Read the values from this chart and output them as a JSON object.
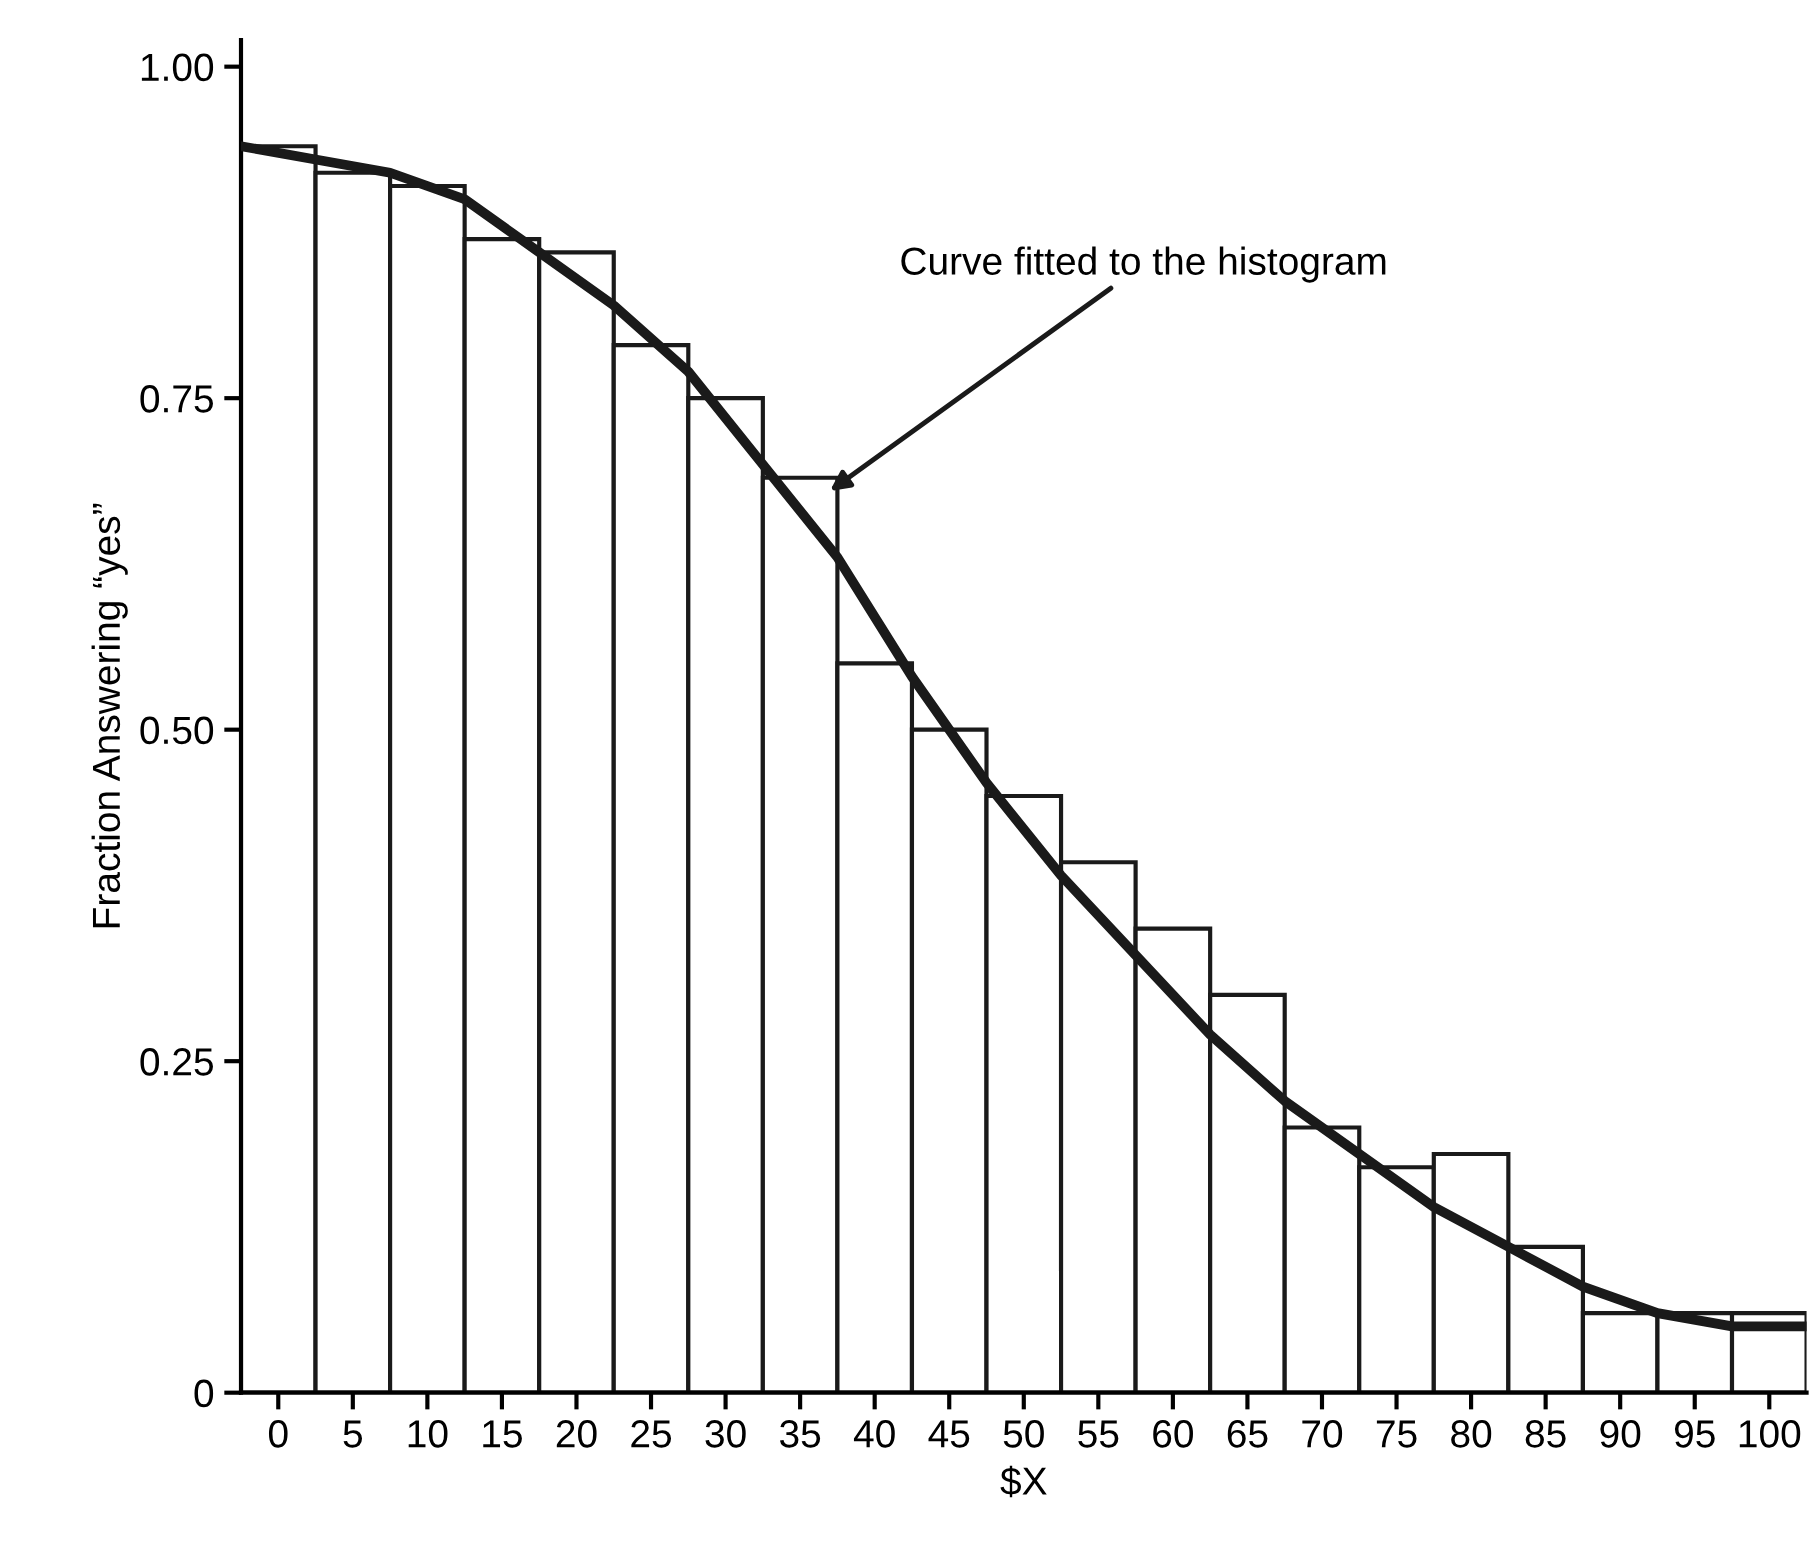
{
  "chart_data": {
    "type": "histogram",
    "xlabel": "$X",
    "ylabel": "Fraction Answering “yes”",
    "bins": [
      -2.5,
      2.5,
      7.5,
      12.5,
      17.5,
      22.5,
      27.5,
      32.5,
      37.5,
      42.5,
      47.5,
      52.5,
      57.5,
      62.5,
      67.5,
      72.5,
      77.5,
      82.5,
      87.5,
      92.5,
      97.5,
      102.5
    ],
    "values": [
      0.94,
      0.92,
      0.91,
      0.87,
      0.86,
      0.79,
      0.75,
      0.69,
      0.55,
      0.5,
      0.45,
      0.4,
      0.35,
      0.3,
      0.2,
      0.17,
      0.18,
      0.11,
      0.06,
      0.06,
      0.06
    ],
    "color": "#ffffff",
    "series": [
      {
        "type": "line",
        "color": "#1a1a1a",
        "x": [
          -2.5,
          2.5,
          7.5,
          12.5,
          17.5,
          22.5,
          27.5,
          32.5,
          37.5,
          42.5,
          47.5,
          52.5,
          57.5,
          62.5,
          67.5,
          72.5,
          77.5,
          82.5,
          87.5,
          92.5,
          97.5,
          102.5
        ],
        "values": [
          0.94,
          0.93,
          0.92,
          0.9,
          0.86,
          0.82,
          0.77,
          0.7,
          0.63,
          0.54,
          0.46,
          0.39,
          0.33,
          0.27,
          0.22,
          0.18,
          0.14,
          0.11,
          0.08,
          0.06,
          0.05,
          0.05
        ]
      }
    ],
    "annotations": [
      {
        "text": "Curve fitted to the histogram",
        "x": 37,
        "y": 0.68
      }
    ],
    "xlim": [
      -2.5,
      102.5
    ],
    "ylim": [
      0,
      1.02
    ],
    "xticks": [
      0,
      5,
      10,
      15,
      20,
      25,
      30,
      35,
      40,
      45,
      50,
      55,
      60,
      65,
      70,
      75,
      80,
      85,
      90,
      95,
      100
    ],
    "yticks": [
      0,
      0.25,
      {
        "value": 0.5,
        "label": "0.50"
      },
      0.75,
      {
        "value": 1.0,
        "label": "1.00"
      }
    ],
    "grid": false
  }
}
